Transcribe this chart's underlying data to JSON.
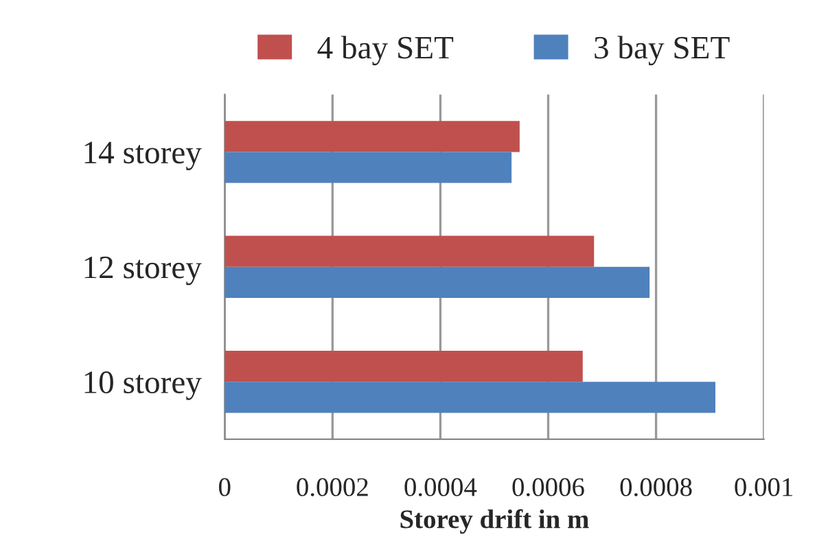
{
  "chart_data": {
    "type": "bar",
    "orientation": "horizontal",
    "xlabel": "Storey drift in m",
    "categories": [
      "14 storey",
      "12 storey",
      "10 storey"
    ],
    "series": [
      {
        "name": "4 bay SET",
        "color": "#c0504d",
        "values": [
          0.000547,
          0.000685,
          0.000664
        ]
      },
      {
        "name": "3 bay SET",
        "color": "#4f81bd",
        "values": [
          0.000532,
          0.000788,
          0.00091
        ]
      }
    ],
    "xlim": [
      0,
      0.001
    ],
    "xticks": [
      0,
      0.0002,
      0.0004,
      0.0006,
      0.0008,
      0.001
    ],
    "grid": "x",
    "legend": "top"
  }
}
